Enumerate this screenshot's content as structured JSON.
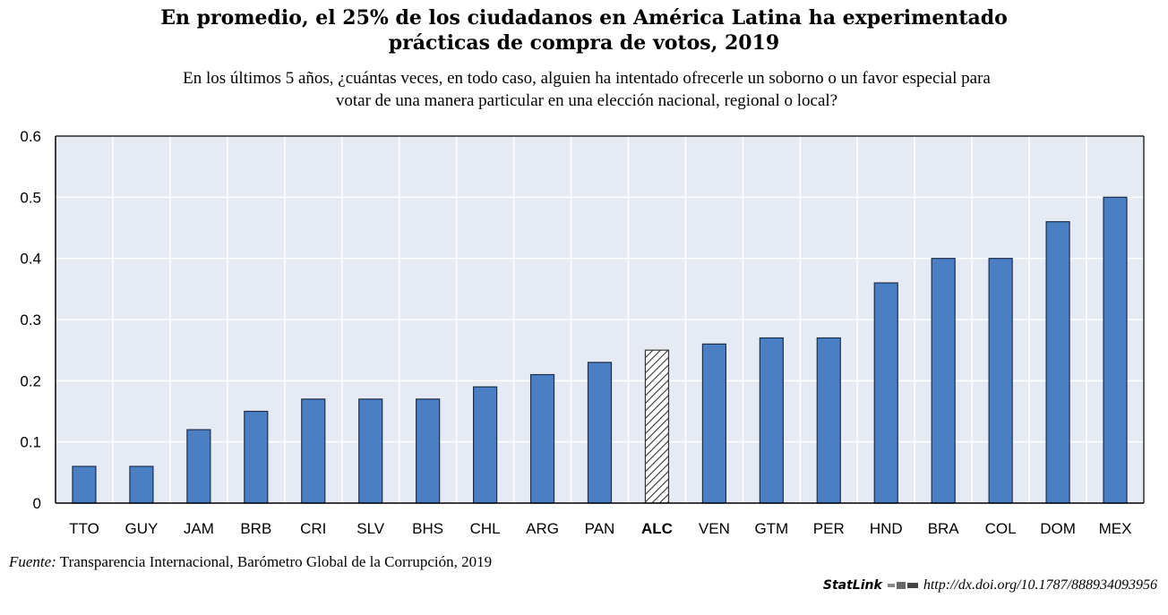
{
  "header": {
    "title_line1": "En promedio, el 25% de los ciudadanos en América Latina ha experimentado",
    "title_line2": "prácticas de compra de votos, 2019",
    "subtitle_line1": "En los últimos 5 años, ¿cuántas veces, en todo caso, alguien ha intentado ofrecerle un soborno o un favor especial para",
    "subtitle_line2": "votar de una manera particular en una elección nacional, regional o local?"
  },
  "footer": {
    "source_label": "Fuente:",
    "source_text": " Transparencia Internacional, Barómetro Global de la Corrupción, 2019",
    "statlink_brand": "StatLink",
    "statlink_url": "http://dx.doi.org/10.1787/888934093956"
  },
  "colors": {
    "bar": "#4a7fc4",
    "bar_outline": "#1f2f4a",
    "highlight_hatch": "#333333",
    "plot_bg": "#e6ebf3",
    "grid": "#ffffff"
  },
  "chart_data": {
    "type": "bar",
    "categories": [
      "TTO",
      "GUY",
      "JAM",
      "BRB",
      "CRI",
      "SLV",
      "BHS",
      "CHL",
      "ARG",
      "PAN",
      "ALC",
      "VEN",
      "GTM",
      "PER",
      "HND",
      "BRA",
      "COL",
      "DOM",
      "MEX"
    ],
    "values": [
      0.06,
      0.06,
      0.12,
      0.15,
      0.17,
      0.17,
      0.17,
      0.19,
      0.21,
      0.23,
      0.25,
      0.26,
      0.27,
      0.27,
      0.36,
      0.4,
      0.4,
      0.46,
      0.5
    ],
    "highlight": "ALC",
    "ylim": [
      0,
      0.6
    ],
    "yticks": [
      0,
      0.1,
      0.2,
      0.3,
      0.4,
      0.5,
      0.6
    ],
    "ytick_labels": [
      "0",
      "0.1",
      "0.2",
      "0.3",
      "0.4",
      "0.5",
      "0.6"
    ],
    "grid": true,
    "legend": false
  }
}
